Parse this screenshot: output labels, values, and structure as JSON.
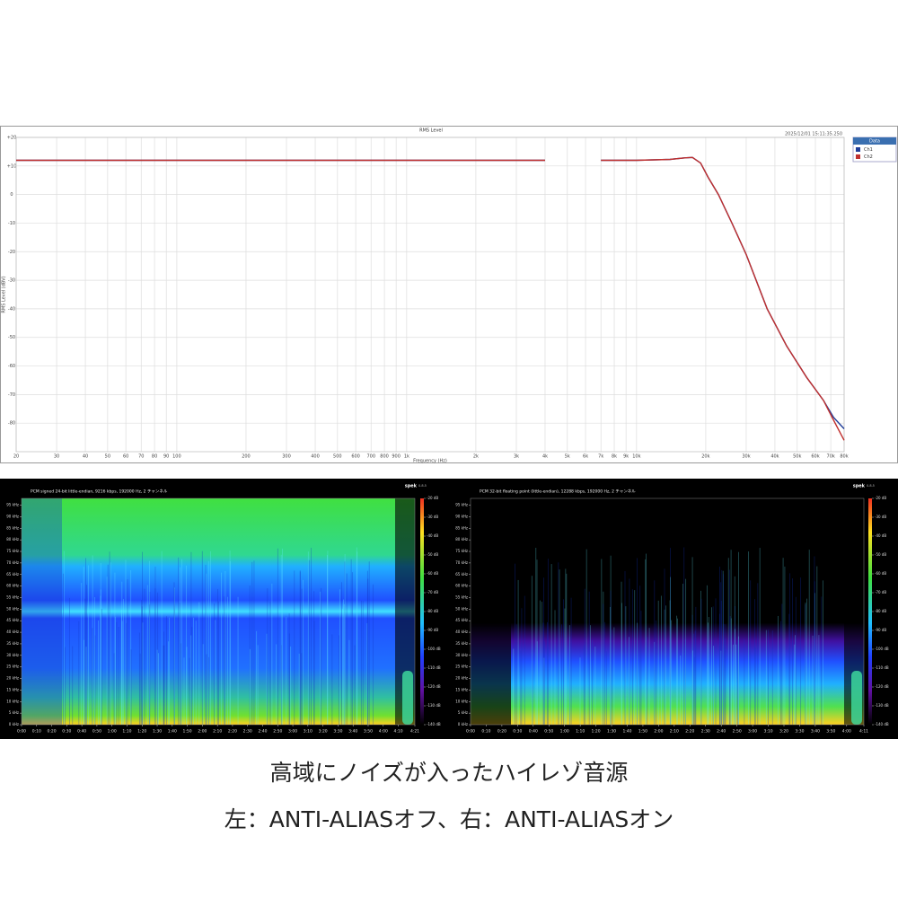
{
  "chart_data": [
    {
      "type": "line",
      "title": "RMS Level",
      "timestamp": "2025/12/01 15:11:35.250",
      "x_label": "Frequency (Hz)",
      "y_label": "RMS Level (dBV)",
      "log_x": true,
      "grid": true,
      "legend": "upper right",
      "legend_title": "Data",
      "xlim": [
        20,
        80000
      ],
      "ylim": [
        -90,
        20
      ],
      "xticks": [
        20,
        30,
        40,
        50,
        60,
        70,
        80,
        90,
        100,
        200,
        300,
        400,
        500,
        600,
        700,
        800,
        900,
        {
          "value": 1000,
          "label": "1k"
        },
        {
          "value": 2000,
          "label": "2k"
        },
        {
          "value": 3000,
          "label": "3k"
        },
        {
          "value": 4000,
          "label": "4k"
        },
        {
          "value": 5000,
          "label": "5k"
        },
        {
          "value": 6000,
          "label": "6k"
        },
        {
          "value": 7000,
          "label": "7k"
        },
        {
          "value": 8000,
          "label": "8k"
        },
        {
          "value": 9000,
          "label": "9k"
        },
        {
          "value": 10000,
          "label": "10k"
        },
        {
          "value": 20000,
          "label": "20k"
        },
        {
          "value": 30000,
          "label": "30k"
        },
        {
          "value": 40000,
          "label": "40k"
        },
        {
          "value": 50000,
          "label": "50k"
        },
        {
          "value": 60000,
          "label": "60k"
        },
        {
          "value": 70000,
          "label": "70k"
        },
        {
          "value": 80000,
          "label": "80k"
        }
      ],
      "yticks": [
        {
          "value": 20,
          "label": "+20"
        },
        {
          "value": 10,
          "label": "+10"
        },
        0,
        -10,
        -20,
        -30,
        -40,
        -50,
        -60,
        -70,
        -80
      ],
      "x": [
        20,
        100,
        1000,
        4000,
        5000,
        6500,
        7000,
        10000,
        14000,
        16000,
        17500,
        19000,
        20500,
        22700,
        26000,
        30000,
        37000,
        45000,
        55000,
        65000,
        72000,
        80000
      ],
      "series": [
        {
          "name": "Ch1",
          "color": "#1f3d99",
          "values": [
            12,
            12,
            12,
            12,
            null,
            null,
            12,
            12,
            12.3,
            12.8,
            13,
            11,
            6,
            0,
            -10,
            -21,
            -40,
            -53,
            -64,
            -72,
            -78,
            -82
          ]
        },
        {
          "name": "Ch2",
          "color": "#c0302e",
          "values": [
            12,
            12,
            12,
            12,
            null,
            null,
            12,
            12,
            12.3,
            12.8,
            13,
            11,
            6,
            0,
            -10,
            -21,
            -40,
            -53,
            -64,
            -72,
            -79,
            -86
          ]
        }
      ]
    },
    {
      "type": "spectrogram",
      "title": "PCM signed 24-bit little-endian, 9216 kbps, 192000 Hz, 2 チャンネル",
      "app": "spek",
      "version": "0.8.5",
      "xlim": [
        0,
        261
      ],
      "xticks": [
        {
          "value": 0,
          "label": "0:00"
        },
        {
          "value": 10,
          "label": "0:10"
        },
        {
          "value": 20,
          "label": "0:20"
        },
        {
          "value": 30,
          "label": "0:30"
        },
        {
          "value": 40,
          "label": "0:40"
        },
        {
          "value": 50,
          "label": "0:50"
        },
        {
          "value": 60,
          "label": "1:00"
        },
        {
          "value": 70,
          "label": "1:10"
        },
        {
          "value": 80,
          "label": "1:20"
        },
        {
          "value": 90,
          "label": "1:30"
        },
        {
          "value": 100,
          "label": "1:40"
        },
        {
          "value": 110,
          "label": "1:50"
        },
        {
          "value": 120,
          "label": "2:00"
        },
        {
          "value": 130,
          "label": "2:10"
        },
        {
          "value": 140,
          "label": "2:20"
        },
        {
          "value": 150,
          "label": "2:30"
        },
        {
          "value": 160,
          "label": "2:40"
        },
        {
          "value": 170,
          "label": "2:50"
        },
        {
          "value": 180,
          "label": "3:00"
        },
        {
          "value": 190,
          "label": "3:10"
        },
        {
          "value": 200,
          "label": "3:20"
        },
        {
          "value": 210,
          "label": "3:30"
        },
        {
          "value": 220,
          "label": "3:40"
        },
        {
          "value": 230,
          "label": "3:50"
        },
        {
          "value": 240,
          "label": "4:00"
        },
        {
          "value": 250,
          "label": "4:10"
        },
        {
          "value": 261,
          "label": "4:21"
        }
      ],
      "ylim": [
        0,
        96
      ],
      "yticks": [
        {
          "value": 0,
          "label": "0 kHz"
        },
        {
          "value": 5,
          "label": "5 kHz"
        },
        {
          "value": 10,
          "label": "10 kHz"
        },
        {
          "value": 15,
          "label": "15 kHz"
        },
        {
          "value": 20,
          "label": "20 kHz"
        },
        {
          "value": 25,
          "label": "25 kHz"
        },
        {
          "value": 30,
          "label": "30 kHz"
        },
        {
          "value": 35,
          "label": "35 kHz"
        },
        {
          "value": 40,
          "label": "40 kHz"
        },
        {
          "value": 45,
          "label": "45 kHz"
        },
        {
          "value": 50,
          "label": "50 kHz"
        },
        {
          "value": 55,
          "label": "55 kHz"
        },
        {
          "value": 60,
          "label": "60 kHz"
        },
        {
          "value": 65,
          "label": "65 kHz"
        },
        {
          "value": 70,
          "label": "70 kHz"
        },
        {
          "value": 75,
          "label": "75 kHz"
        },
        {
          "value": 80,
          "label": "80 kHz"
        },
        {
          "value": 85,
          "label": "85 kHz"
        },
        {
          "value": 90,
          "label": "90 kHz"
        },
        {
          "value": 95,
          "label": "95 kHz"
        }
      ],
      "colorbar_lim": [
        -140,
        -20
      ],
      "colorbar_ticks": [
        {
          "value": -20,
          "label": "-20 dB"
        },
        {
          "value": -30,
          "label": "-30 dB"
        },
        {
          "value": -40,
          "label": "-40 dB"
        },
        {
          "value": -50,
          "label": "-50 dB"
        },
        {
          "value": -60,
          "label": "-60 dB"
        },
        {
          "value": -70,
          "label": "-70 dB"
        },
        {
          "value": -80,
          "label": "-80 dB"
        },
        {
          "value": -90,
          "label": "-90 dB"
        },
        {
          "value": -100,
          "label": "-100 dB"
        },
        {
          "value": -110,
          "label": "-110 dB"
        },
        {
          "value": -120,
          "label": "-120 dB"
        },
        {
          "value": -130,
          "label": "-130 dB"
        },
        {
          "value": -140,
          "label": "-140 dB"
        }
      ]
    },
    {
      "type": "spectrogram",
      "title": "PCM 32-bit floating point (little-endian), 12288 kbps, 192000 Hz, 2 チャンネル",
      "app": "spek",
      "version": "0.8.5",
      "xlim": [
        0,
        251
      ],
      "xticks": [
        {
          "value": 0,
          "label": "0:00"
        },
        {
          "value": 10,
          "label": "0:10"
        },
        {
          "value": 20,
          "label": "0:20"
        },
        {
          "value": 30,
          "label": "0:30"
        },
        {
          "value": 40,
          "label": "0:40"
        },
        {
          "value": 50,
          "label": "0:50"
        },
        {
          "value": 60,
          "label": "1:00"
        },
        {
          "value": 70,
          "label": "1:10"
        },
        {
          "value": 80,
          "label": "1:20"
        },
        {
          "value": 90,
          "label": "1:30"
        },
        {
          "value": 100,
          "label": "1:40"
        },
        {
          "value": 110,
          "label": "1:50"
        },
        {
          "value": 120,
          "label": "2:00"
        },
        {
          "value": 130,
          "label": "2:10"
        },
        {
          "value": 140,
          "label": "2:20"
        },
        {
          "value": 150,
          "label": "2:30"
        },
        {
          "value": 160,
          "label": "2:40"
        },
        {
          "value": 170,
          "label": "2:50"
        },
        {
          "value": 180,
          "label": "3:00"
        },
        {
          "value": 190,
          "label": "3:10"
        },
        {
          "value": 200,
          "label": "3:20"
        },
        {
          "value": 210,
          "label": "3:30"
        },
        {
          "value": 220,
          "label": "3:40"
        },
        {
          "value": 230,
          "label": "3:50"
        },
        {
          "value": 240,
          "label": "4:00"
        },
        {
          "value": 251,
          "label": "4:11"
        }
      ],
      "ylim": [
        0,
        96
      ],
      "yticks": [
        {
          "value": 0,
          "label": "0 kHz"
        },
        {
          "value": 5,
          "label": "5 kHz"
        },
        {
          "value": 10,
          "label": "10 kHz"
        },
        {
          "value": 15,
          "label": "15 kHz"
        },
        {
          "value": 20,
          "label": "20 kHz"
        },
        {
          "value": 25,
          "label": "25 kHz"
        },
        {
          "value": 30,
          "label": "30 kHz"
        },
        {
          "value": 35,
          "label": "35 kHz"
        },
        {
          "value": 40,
          "label": "40 kHz"
        },
        {
          "value": 45,
          "label": "45 kHz"
        },
        {
          "value": 50,
          "label": "50 kHz"
        },
        {
          "value": 55,
          "label": "55 kHz"
        },
        {
          "value": 60,
          "label": "60 kHz"
        },
        {
          "value": 65,
          "label": "65 kHz"
        },
        {
          "value": 70,
          "label": "70 kHz"
        },
        {
          "value": 75,
          "label": "75 kHz"
        },
        {
          "value": 80,
          "label": "80 kHz"
        },
        {
          "value": 85,
          "label": "85 kHz"
        },
        {
          "value": 90,
          "label": "90 kHz"
        },
        {
          "value": 95,
          "label": "95 kHz"
        }
      ],
      "colorbar_lim": [
        -140,
        -20
      ],
      "colorbar_ticks": [
        {
          "value": -20,
          "label": "-20 dB"
        },
        {
          "value": -30,
          "label": "-30 dB"
        },
        {
          "value": -40,
          "label": "-40 dB"
        },
        {
          "value": -50,
          "label": "-50 dB"
        },
        {
          "value": -60,
          "label": "-60 dB"
        },
        {
          "value": -70,
          "label": "-70 dB"
        },
        {
          "value": -80,
          "label": "-80 dB"
        },
        {
          "value": -90,
          "label": "-90 dB"
        },
        {
          "value": -100,
          "label": "-100 dB"
        },
        {
          "value": -110,
          "label": "-110 dB"
        },
        {
          "value": -120,
          "label": "-120 dB"
        },
        {
          "value": -130,
          "label": "-130 dB"
        },
        {
          "value": -140,
          "label": "-140 dB"
        }
      ]
    }
  ],
  "caption": [
    "高域にノイズが入ったハイレゾ音源",
    "左：ANTI-ALIASオフ、右：ANTI-ALIASオン"
  ]
}
